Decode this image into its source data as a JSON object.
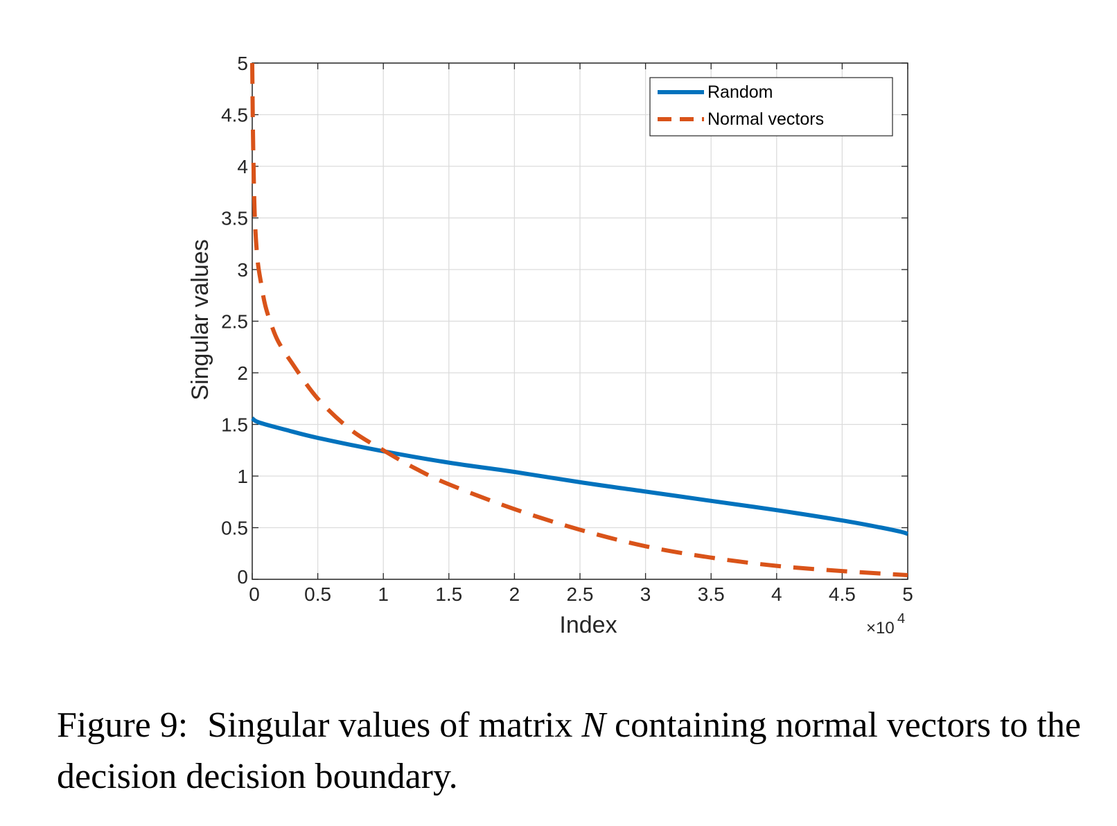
{
  "chart_data": {
    "type": "line",
    "xlabel": "Index",
    "ylabel": "Singular values",
    "x_exponent": "×10",
    "x_exponent_power": "4",
    "xlim": [
      0,
      5
    ],
    "ylim": [
      0,
      5
    ],
    "xticks": [
      "0",
      "0.5",
      "1",
      "1.5",
      "2",
      "2.5",
      "3",
      "3.5",
      "4",
      "4.5",
      "5"
    ],
    "yticks": [
      "0",
      "0.5",
      "1",
      "1.5",
      "2",
      "2.5",
      "3",
      "3.5",
      "4",
      "4.5",
      "5"
    ],
    "grid": true,
    "legend_position": "top-right",
    "series": [
      {
        "name": "Random",
        "color": "#0072BD",
        "style": "solid",
        "x": [
          0,
          0.05,
          0.25,
          0.5,
          1.0,
          1.5,
          2.0,
          2.5,
          3.0,
          3.5,
          4.0,
          4.5,
          4.8,
          4.95,
          5.0
        ],
        "y": [
          1.56,
          1.52,
          1.45,
          1.37,
          1.24,
          1.13,
          1.04,
          0.94,
          0.85,
          0.76,
          0.67,
          0.57,
          0.5,
          0.46,
          0.44
        ]
      },
      {
        "name": "Normal vectors",
        "color": "#D95319",
        "style": "dashed",
        "x": [
          0,
          0.005,
          0.01,
          0.02,
          0.04,
          0.07,
          0.1,
          0.15,
          0.2,
          0.3,
          0.5,
          0.75,
          1.0,
          1.25,
          1.5,
          2.0,
          2.5,
          3.0,
          3.5,
          4.0,
          4.5,
          5.0
        ],
        "y": [
          5.0,
          4.4,
          4.0,
          3.5,
          3.1,
          2.85,
          2.65,
          2.45,
          2.3,
          2.1,
          1.75,
          1.45,
          1.25,
          1.07,
          0.92,
          0.68,
          0.48,
          0.32,
          0.21,
          0.13,
          0.08,
          0.04
        ]
      }
    ]
  },
  "caption": {
    "label": "Figure 9:",
    "text_before": "Singular values of matrix ",
    "symbol": "N",
    "text_after": " containing normal vectors to the decision decision boundary."
  }
}
